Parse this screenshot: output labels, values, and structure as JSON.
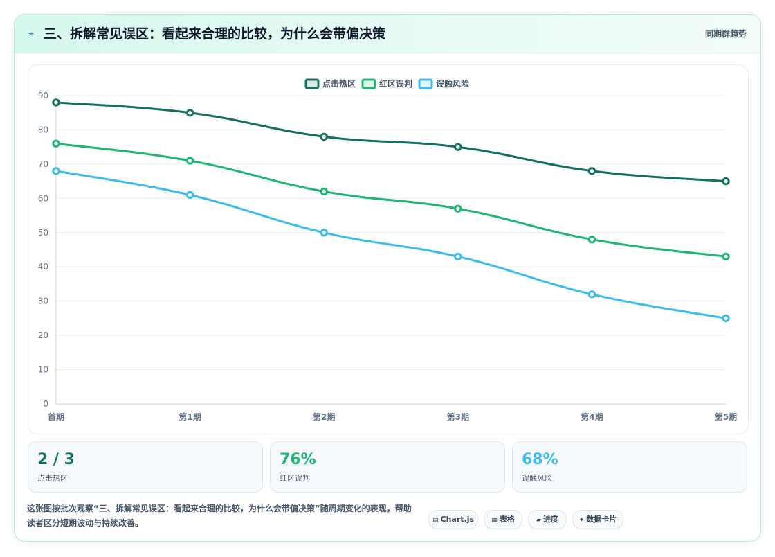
{
  "header": {
    "icon": "lightning-icon",
    "title": "三、拆解常见误区：看起来合理的比较，为什么会带偏决策",
    "meta": "同期群趋势"
  },
  "chart_data": {
    "type": "line",
    "categories": [
      "首期",
      "第1期",
      "第2期",
      "第3期",
      "第4期",
      "第5期"
    ],
    "series": [
      {
        "name": "点击热区",
        "color": "#11705f",
        "values": [
          88,
          85,
          78,
          75,
          68,
          65
        ]
      },
      {
        "name": "红区误判",
        "color": "#1db675",
        "values": [
          76,
          71,
          62,
          57,
          48,
          43
        ]
      },
      {
        "name": "误触风险",
        "color": "#3dbbf0",
        "values": [
          68,
          61,
          50,
          43,
          32,
          25
        ]
      }
    ],
    "ylim": [
      0,
      90
    ],
    "yticks": [
      0,
      10,
      20,
      30,
      40,
      50,
      60,
      70,
      80,
      90
    ],
    "legend_position": "top-center",
    "grid": true,
    "curve": "smooth"
  },
  "stats": [
    {
      "value": "2 / 3",
      "label": "点击热区",
      "color": "#11705f"
    },
    {
      "value": "76%",
      "label": "红区误判",
      "color": "#1db675"
    },
    {
      "value": "68%",
      "label": "误触风险",
      "color": "#3dbbf0"
    }
  ],
  "description": "这张图按批次观察“三、拆解常见误区：看起来合理的比较，为什么会带偏决策”随周期变化的表现，帮助读者区分短期波动与持续改善。",
  "tags": [
    {
      "icon": "▤",
      "label": "Chart.js"
    },
    {
      "icon": "▦",
      "label": "表格"
    },
    {
      "icon": "▰",
      "label": "进度"
    },
    {
      "icon": "✦",
      "label": "数据卡片"
    }
  ]
}
